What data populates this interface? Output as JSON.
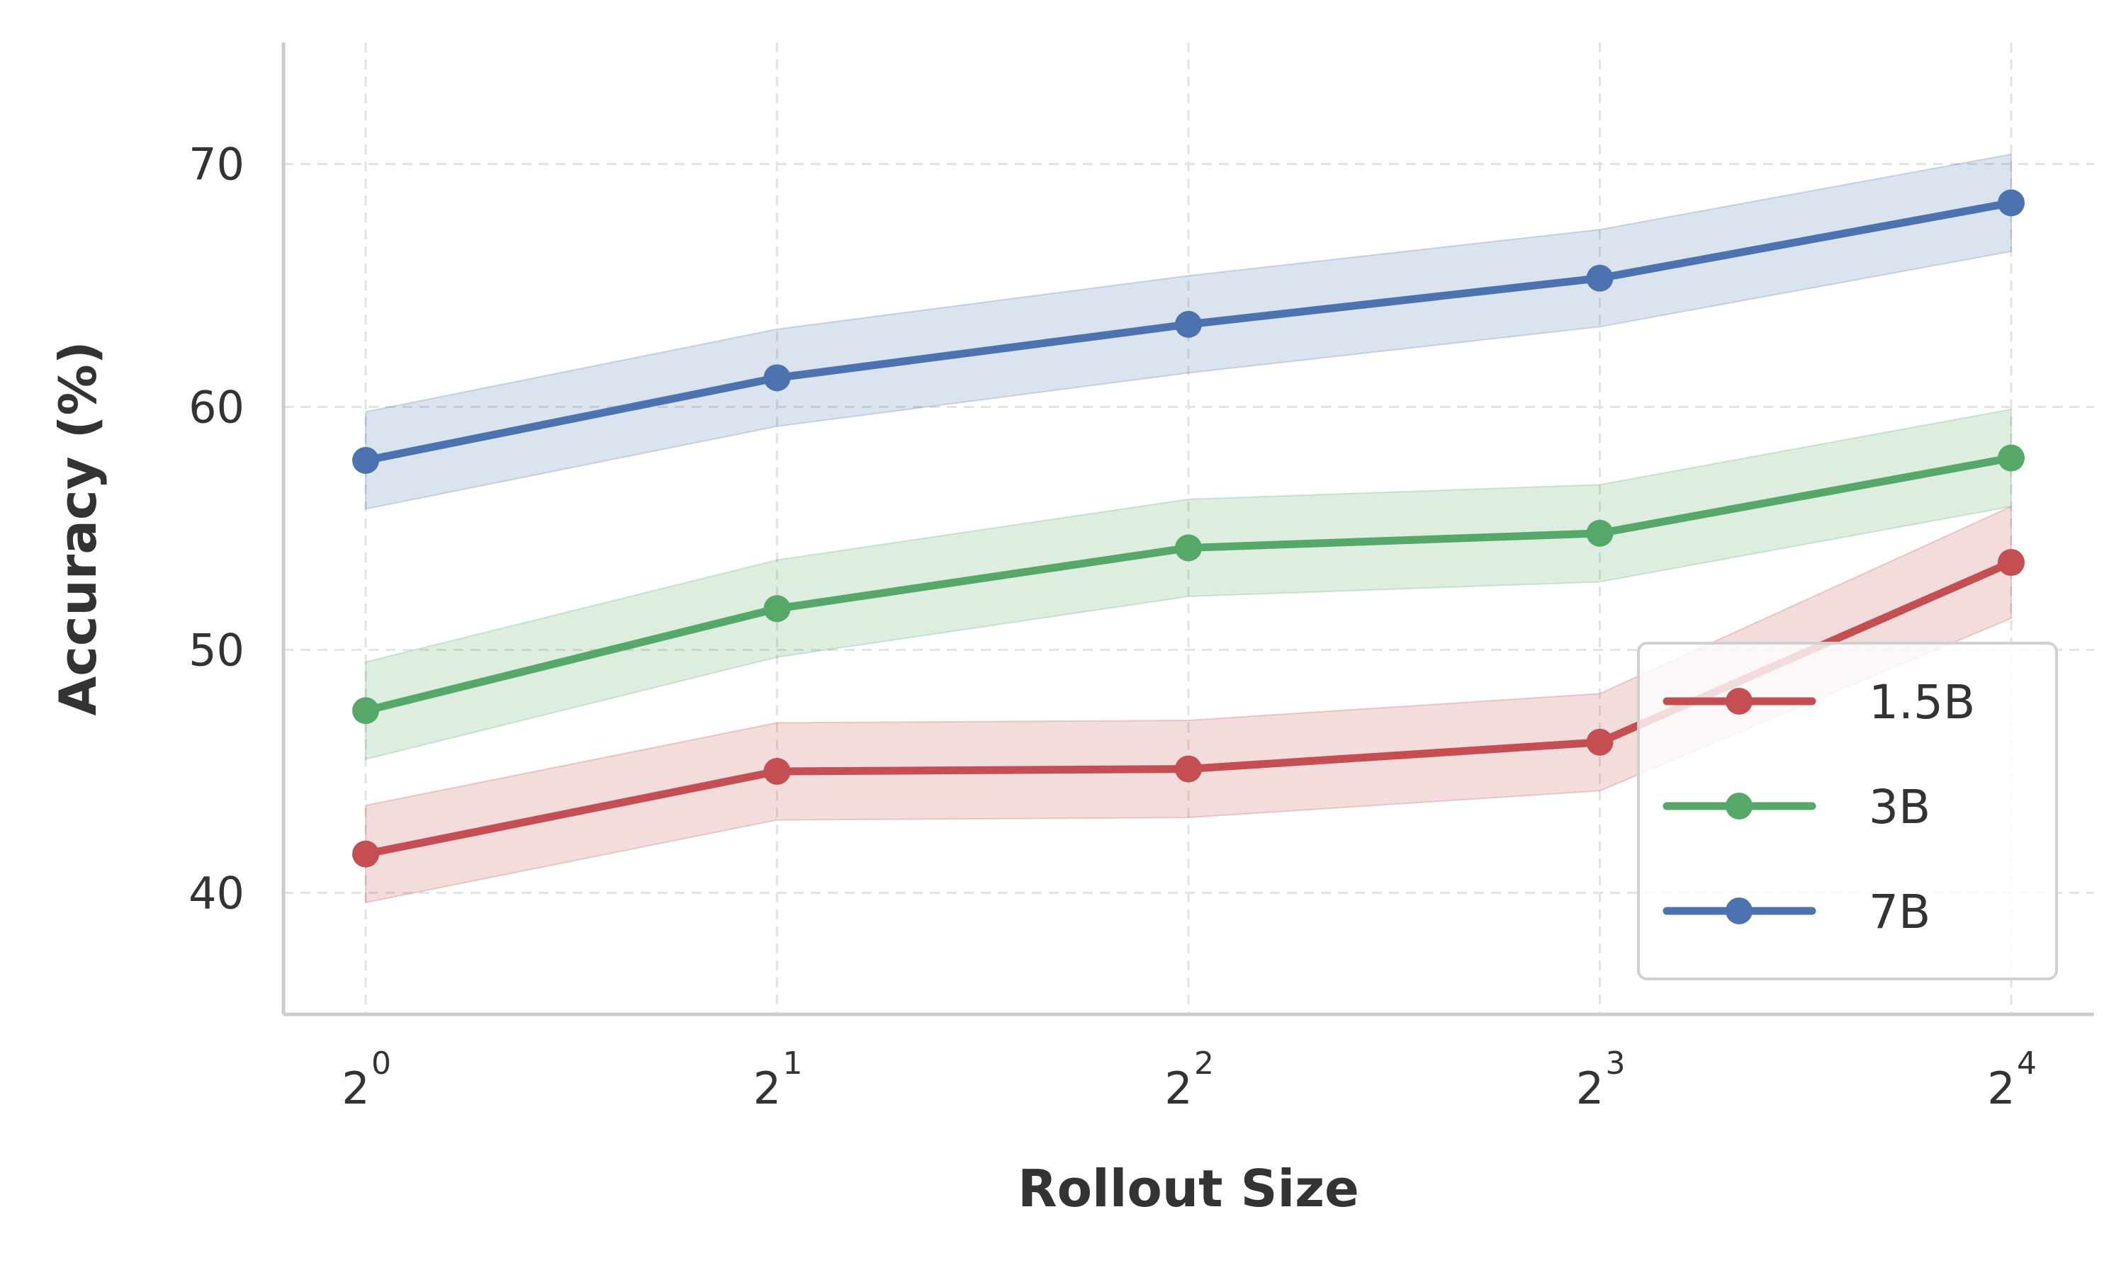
{
  "chart_data": {
    "type": "line",
    "title": "",
    "xlabel": "Rollout Size",
    "ylabel": "Accuracy (%)",
    "x": [
      1,
      2,
      4,
      8,
      16
    ],
    "x_scale": "log2",
    "x_tick_labels": [
      {
        "base": "2",
        "exp": "0"
      },
      {
        "base": "2",
        "exp": "1"
      },
      {
        "base": "2",
        "exp": "2"
      },
      {
        "base": "2",
        "exp": "3"
      },
      {
        "base": "2",
        "exp": "4"
      }
    ],
    "ylim": [
      35,
      75
    ],
    "y_ticks": [
      40,
      50,
      60,
      70
    ],
    "grid": true,
    "legend_position": "lower-right",
    "series": [
      {
        "name": "1.5B",
        "color": "#c44e52",
        "values": [
          41.6,
          45.0,
          45.1,
          46.2,
          53.6
        ],
        "lower": [
          39.6,
          43.0,
          43.1,
          44.2,
          51.3
        ],
        "upper": [
          43.6,
          47.0,
          47.1,
          48.2,
          55.9
        ]
      },
      {
        "name": "3B",
        "color": "#55a868",
        "values": [
          47.5,
          51.7,
          54.2,
          54.8,
          57.9
        ],
        "lower": [
          45.5,
          49.7,
          52.2,
          52.8,
          55.9
        ],
        "upper": [
          49.5,
          53.7,
          56.2,
          56.8,
          59.9
        ]
      },
      {
        "name": "7B",
        "color": "#4c72b0",
        "values": [
          57.8,
          61.2,
          63.4,
          65.3,
          68.4
        ],
        "lower": [
          55.8,
          59.2,
          61.4,
          63.3,
          66.4
        ],
        "upper": [
          59.8,
          63.2,
          65.4,
          67.3,
          70.4
        ]
      }
    ]
  }
}
